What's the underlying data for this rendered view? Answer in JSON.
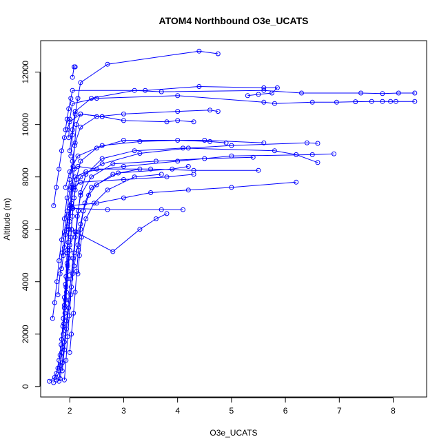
{
  "chart_data": {
    "type": "line",
    "title": "ATOM4 Northbound O3e_UCATS",
    "xlabel": "O3e_UCATS",
    "ylabel": "Altitude (m)",
    "xlim": [
      1.46,
      8.62
    ],
    "ylim": [
      -400,
      13200
    ],
    "xticks": [
      2,
      3,
      4,
      5,
      6,
      7,
      8
    ],
    "yticks": [
      0,
      2000,
      4000,
      6000,
      8000,
      10000,
      12000
    ],
    "grid": false,
    "marker": "open-circle",
    "color": "#0000ff",
    "series": [
      {
        "points": [
          [
            1.62,
            200
          ],
          [
            1.72,
            350
          ],
          [
            1.78,
            700
          ],
          [
            1.82,
            1200
          ],
          [
            1.85,
            1800
          ],
          [
            1.88,
            2600
          ],
          [
            1.9,
            3400
          ],
          [
            1.93,
            4200
          ],
          [
            1.95,
            5100
          ],
          [
            1.98,
            6000
          ],
          [
            2.02,
            6900
          ],
          [
            2.05,
            7700
          ],
          [
            2.08,
            8300
          ],
          [
            2.15,
            8400
          ],
          [
            2.5,
            8300
          ],
          [
            3.5,
            8300
          ],
          [
            4.3,
            8250
          ],
          [
            5.5,
            8250
          ]
        ]
      },
      {
        "points": [
          [
            1.7,
            150
          ],
          [
            1.75,
            500
          ],
          [
            1.8,
            1000
          ],
          [
            1.84,
            1600
          ],
          [
            1.87,
            2300
          ],
          [
            1.9,
            3100
          ],
          [
            1.92,
            3900
          ],
          [
            1.95,
            4700
          ],
          [
            1.97,
            5500
          ],
          [
            2.0,
            6300
          ],
          [
            2.03,
            7000
          ],
          [
            2.06,
            7600
          ],
          [
            2.1,
            8000
          ],
          [
            2.3,
            8200
          ],
          [
            3.0,
            8400
          ],
          [
            4.0,
            8600
          ],
          [
            5.0,
            8800
          ],
          [
            6.5,
            8850
          ],
          [
            6.9,
            8880
          ]
        ]
      },
      {
        "points": [
          [
            1.75,
            250
          ],
          [
            1.8,
            600
          ],
          [
            1.85,
            1300
          ],
          [
            1.88,
            2000
          ],
          [
            1.91,
            2800
          ],
          [
            1.94,
            3600
          ],
          [
            1.97,
            4400
          ],
          [
            2.0,
            5200
          ],
          [
            2.03,
            6000
          ],
          [
            2.06,
            6800
          ],
          [
            2.1,
            7500
          ],
          [
            2.2,
            8000
          ],
          [
            2.6,
            8500
          ],
          [
            3.3,
            8900
          ],
          [
            4.2,
            9100
          ],
          [
            5.0,
            9200
          ],
          [
            6.4,
            9300
          ],
          [
            6.6,
            9280
          ]
        ]
      },
      {
        "points": [
          [
            1.8,
            200
          ],
          [
            1.83,
            800
          ],
          [
            1.86,
            1500
          ],
          [
            1.89,
            2400
          ],
          [
            1.92,
            3300
          ],
          [
            1.95,
            4100
          ],
          [
            1.98,
            4900
          ],
          [
            2.02,
            5700
          ],
          [
            2.05,
            6500
          ],
          [
            2.08,
            7200
          ],
          [
            2.12,
            7900
          ],
          [
            2.2,
            8600
          ],
          [
            2.5,
            9100
          ],
          [
            3.0,
            9400
          ],
          [
            4.5,
            9400
          ],
          [
            5.6,
            9300
          ]
        ]
      },
      {
        "points": [
          [
            1.82,
            300
          ],
          [
            1.86,
            900
          ],
          [
            1.9,
            1700
          ],
          [
            1.94,
            2500
          ],
          [
            1.98,
            3300
          ],
          [
            2.02,
            4100
          ],
          [
            2.06,
            4900
          ],
          [
            2.1,
            5700
          ],
          [
            2.14,
            6500
          ],
          [
            2.2,
            7300
          ],
          [
            2.4,
            8000
          ],
          [
            2.8,
            8500
          ],
          [
            3.6,
            8600
          ],
          [
            4.5,
            8700
          ],
          [
            5.4,
            8750
          ]
        ]
      },
      {
        "points": [
          [
            1.9,
            250
          ],
          [
            1.93,
            1000
          ],
          [
            1.96,
            1900
          ],
          [
            1.99,
            2700
          ],
          [
            2.02,
            3500
          ],
          [
            2.05,
            4300
          ],
          [
            2.08,
            5100
          ],
          [
            2.12,
            5900
          ],
          [
            2.16,
            6700
          ],
          [
            2.2,
            7400
          ],
          [
            2.3,
            8100
          ],
          [
            2.6,
            8700
          ],
          [
            3.2,
            9000
          ],
          [
            4.1,
            9100
          ],
          [
            5.8,
            9000
          ],
          [
            6.2,
            8850
          ],
          [
            6.6,
            8550
          ]
        ]
      },
      {
        "points": [
          [
            1.68,
            2600
          ],
          [
            1.72,
            3200
          ],
          [
            1.76,
            4000
          ],
          [
            1.8,
            4800
          ],
          [
            1.85,
            5600
          ],
          [
            1.9,
            6400
          ],
          [
            1.95,
            7200
          ],
          [
            2.0,
            7900
          ],
          [
            2.05,
            8600
          ],
          [
            2.1,
            9300
          ],
          [
            2.2,
            9900
          ],
          [
            2.5,
            10300
          ],
          [
            3.0,
            10400
          ],
          [
            4.0,
            10500
          ],
          [
            4.6,
            10550
          ],
          [
            4.75,
            10500
          ]
        ]
      },
      {
        "points": [
          [
            1.95,
            5200
          ],
          [
            1.98,
            6000
          ],
          [
            2.0,
            6800
          ],
          [
            2.03,
            7600
          ],
          [
            2.06,
            8400
          ],
          [
            2.09,
            9200
          ],
          [
            2.12,
            10000
          ],
          [
            2.2,
            10400
          ],
          [
            2.6,
            10300
          ],
          [
            3.0,
            10150
          ],
          [
            3.8,
            10100
          ],
          [
            4.0,
            10150
          ],
          [
            4.3,
            10100
          ]
        ]
      },
      {
        "points": [
          [
            1.92,
            9800
          ],
          [
            1.95,
            10200
          ],
          [
            1.98,
            10600
          ],
          [
            2.02,
            11000
          ],
          [
            2.05,
            11300
          ],
          [
            3.4,
            11300
          ],
          [
            4.4,
            11450
          ],
          [
            5.6,
            11400
          ],
          [
            5.85,
            11400
          ],
          [
            5.75,
            11200
          ],
          [
            5.5,
            11150
          ],
          [
            5.3,
            11100
          ]
        ]
      },
      {
        "points": [
          [
            2.0,
            9000
          ],
          [
            2.05,
            9800
          ],
          [
            2.1,
            10500
          ],
          [
            2.4,
            11000
          ],
          [
            3.2,
            11300
          ],
          [
            3.7,
            11250
          ],
          [
            5.6,
            11300
          ],
          [
            6.3,
            11200
          ],
          [
            7.4,
            11200
          ],
          [
            7.8,
            11180
          ],
          [
            8.1,
            11200
          ],
          [
            8.4,
            11200
          ]
        ]
      },
      {
        "points": [
          [
            1.98,
            9500
          ],
          [
            2.0,
            10200
          ],
          [
            2.05,
            10800
          ],
          [
            2.5,
            11000
          ],
          [
            4.0,
            11100
          ],
          [
            5.6,
            10850
          ],
          [
            5.8,
            10800
          ],
          [
            6.5,
            10850
          ],
          [
            6.95,
            10850
          ],
          [
            7.3,
            10870
          ],
          [
            7.6,
            10880
          ],
          [
            7.8,
            10880
          ],
          [
            7.95,
            10880
          ],
          [
            8.05,
            10880
          ],
          [
            8.4,
            10880
          ]
        ]
      },
      {
        "points": [
          [
            2.02,
            8800
          ],
          [
            2.05,
            9600
          ],
          [
            2.1,
            10400
          ],
          [
            2.15,
            11000
          ],
          [
            2.2,
            11600
          ],
          [
            2.7,
            12300
          ],
          [
            4.4,
            12800
          ],
          [
            4.75,
            12700
          ]
        ]
      },
      {
        "points": [
          [
            2.05,
            11800
          ],
          [
            2.08,
            12200
          ],
          [
            2.1,
            12200
          ]
        ]
      },
      {
        "points": [
          [
            1.9,
            3000
          ],
          [
            1.93,
            3800
          ],
          [
            1.96,
            4600
          ],
          [
            2.0,
            5400
          ],
          [
            2.1,
            5900
          ],
          [
            2.8,
            5150
          ],
          [
            3.3,
            6000
          ],
          [
            3.6,
            6400
          ],
          [
            3.8,
            6600
          ]
        ]
      },
      {
        "points": [
          [
            1.88,
            5000
          ],
          [
            1.92,
            5800
          ],
          [
            1.96,
            6500
          ],
          [
            2.05,
            6800
          ],
          [
            2.7,
            6750
          ],
          [
            3.7,
            6750
          ],
          [
            4.1,
            6750
          ]
        ]
      },
      {
        "points": [
          [
            1.85,
            4500
          ],
          [
            1.9,
            5300
          ],
          [
            1.95,
            6100
          ],
          [
            2.0,
            6900
          ],
          [
            2.5,
            7000
          ],
          [
            3.0,
            7200
          ],
          [
            3.5,
            7400
          ],
          [
            4.2,
            7500
          ],
          [
            5.0,
            7600
          ],
          [
            6.2,
            7800
          ]
        ]
      },
      {
        "points": [
          [
            1.78,
            3500
          ],
          [
            1.82,
            4300
          ],
          [
            1.86,
            5100
          ],
          [
            1.9,
            5900
          ],
          [
            1.95,
            6700
          ],
          [
            2.0,
            7500
          ],
          [
            2.2,
            7800
          ],
          [
            3.0,
            7900
          ],
          [
            3.8,
            8000
          ],
          [
            4.3,
            8100
          ]
        ]
      },
      {
        "points": [
          [
            1.92,
            7600
          ],
          [
            2.0,
            8200
          ],
          [
            2.15,
            8800
          ],
          [
            2.6,
            9200
          ],
          [
            3.3,
            9350
          ],
          [
            4.0,
            9400
          ],
          [
            4.6,
            9350
          ],
          [
            4.9,
            9300
          ]
        ]
      },
      {
        "points": [
          [
            2.0,
            1300
          ],
          [
            2.03,
            2000
          ],
          [
            2.07,
            2800
          ],
          [
            2.1,
            3600
          ],
          [
            2.13,
            4400
          ],
          [
            2.16,
            5200
          ],
          [
            2.2,
            6000
          ],
          [
            2.25,
            6700
          ],
          [
            2.35,
            7300
          ],
          [
            2.5,
            7700
          ],
          [
            2.8,
            8100
          ],
          [
            3.3,
            8300
          ]
        ]
      },
      {
        "points": [
          [
            1.7,
            6900
          ],
          [
            1.75,
            7600
          ],
          [
            1.8,
            8300
          ],
          [
            1.85,
            9000
          ],
          [
            1.9,
            9500
          ],
          [
            1.95,
            9800
          ],
          [
            2.0,
            10100
          ],
          [
            2.2,
            10400
          ],
          [
            2.6,
            10300
          ]
        ]
      },
      {
        "points": [
          [
            2.15,
            4300
          ],
          [
            2.18,
            5000
          ],
          [
            2.22,
            5700
          ],
          [
            2.3,
            6400
          ],
          [
            2.45,
            7000
          ],
          [
            2.7,
            7500
          ],
          [
            3.2,
            8000
          ],
          [
            3.7,
            8100
          ]
        ]
      },
      {
        "points": [
          [
            1.86,
            600
          ],
          [
            1.9,
            1400
          ],
          [
            1.94,
            2200
          ],
          [
            1.98,
            3000
          ],
          [
            2.03,
            3800
          ],
          [
            2.08,
            4600
          ],
          [
            2.15,
            5400
          ],
          [
            2.2,
            6200
          ],
          [
            2.28,
            7000
          ],
          [
            2.4,
            7600
          ],
          [
            2.9,
            8150
          ],
          [
            3.9,
            8300
          ],
          [
            4.2,
            8400
          ]
        ]
      }
    ]
  }
}
